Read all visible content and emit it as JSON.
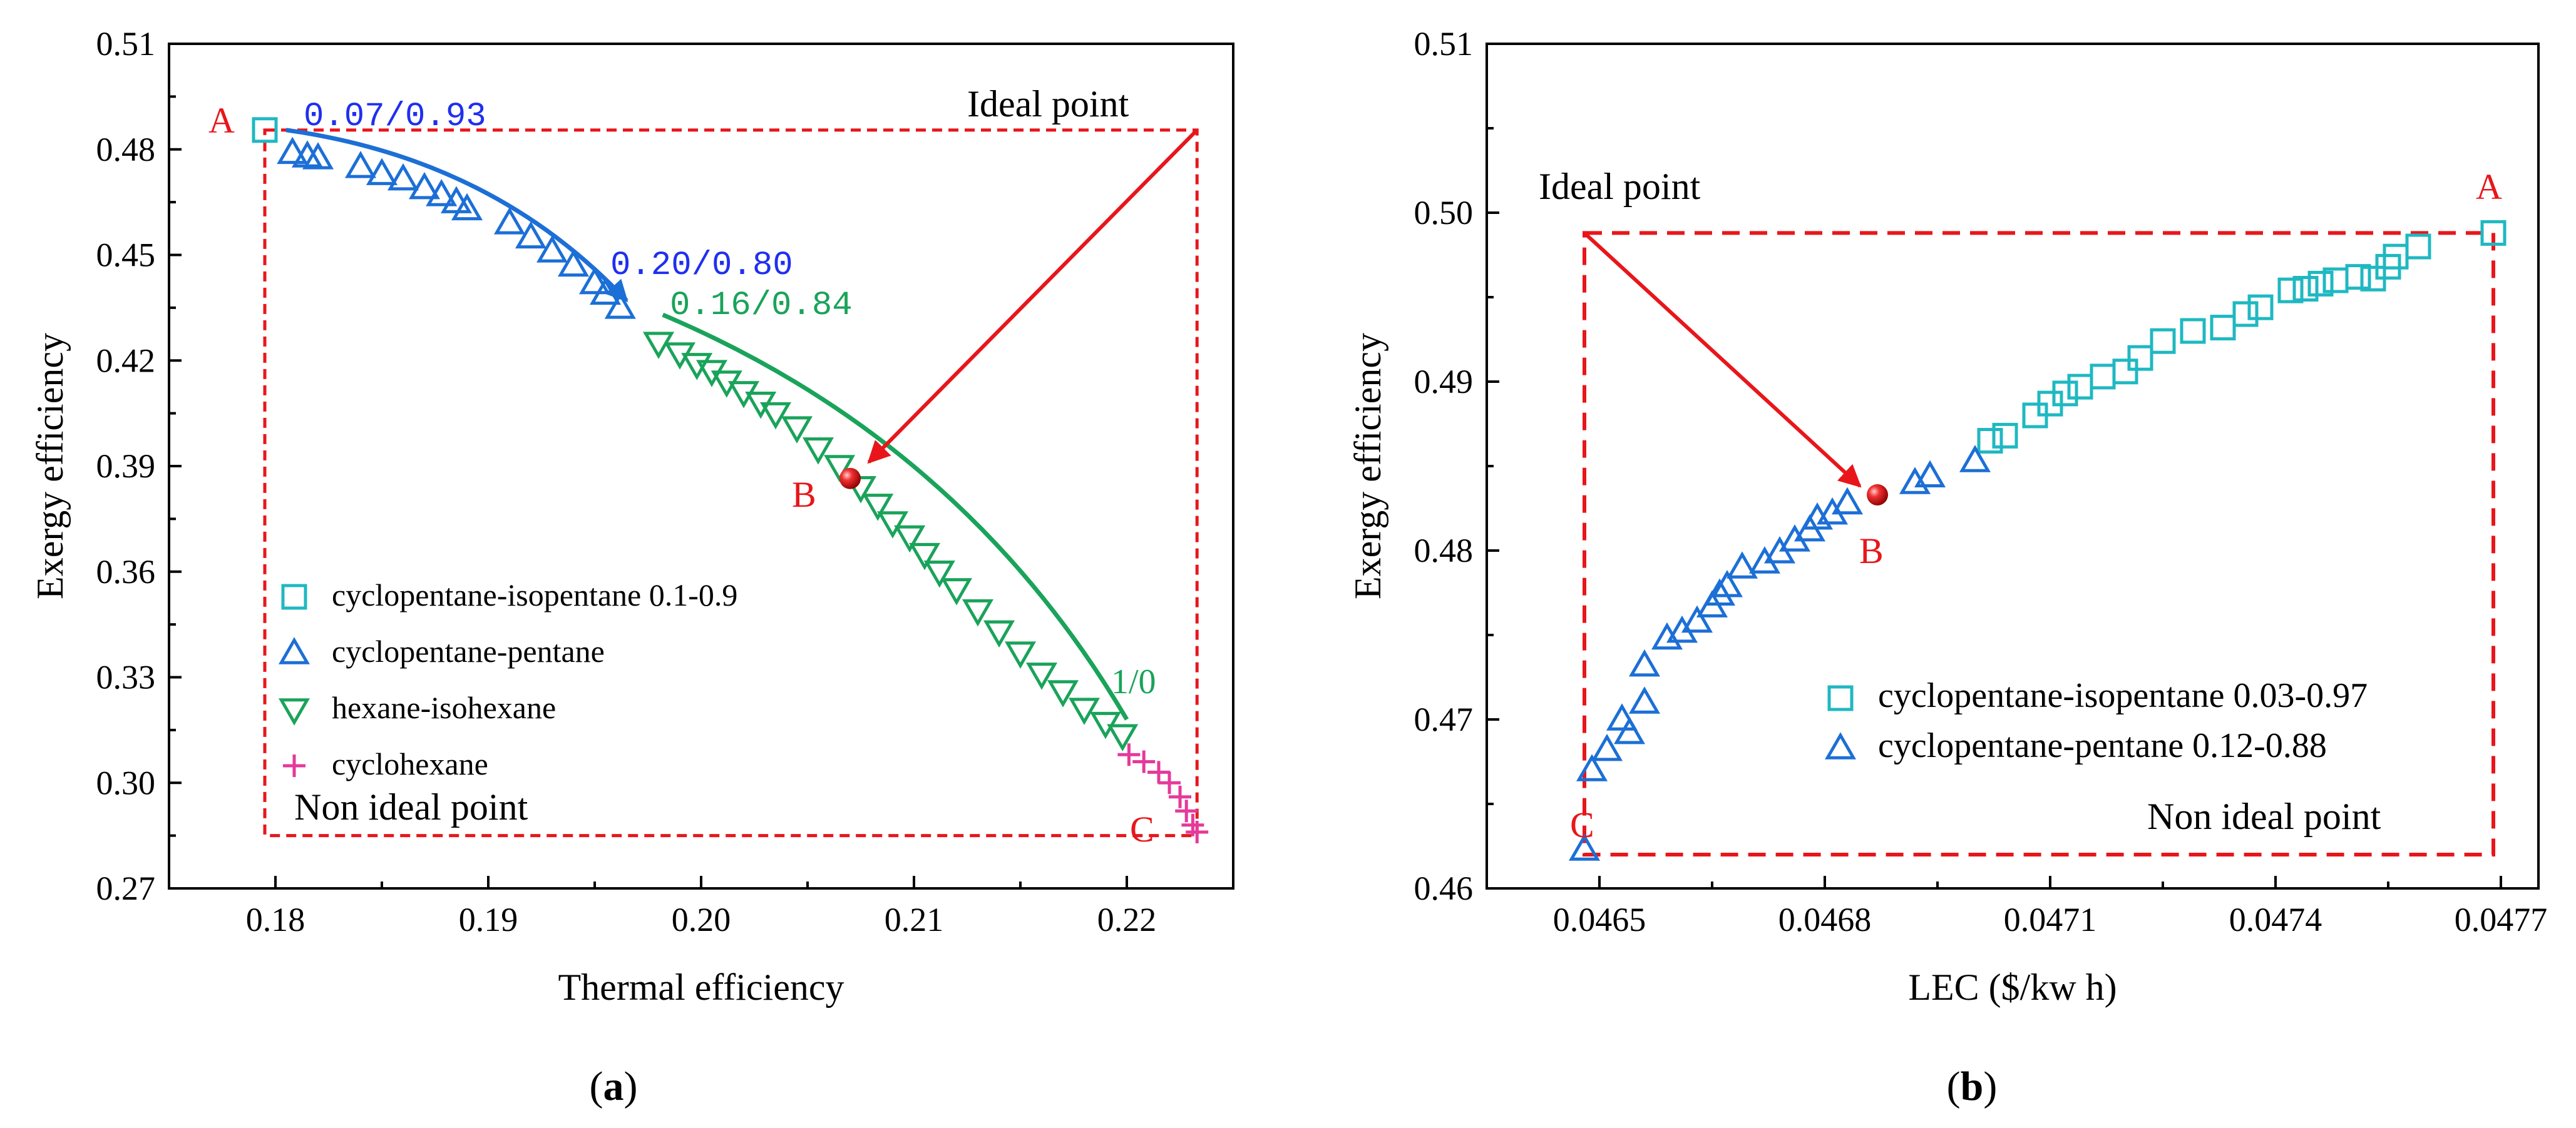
{
  "colors": {
    "cyan": "#1fb8c2",
    "blue": "#1c6fd6",
    "green": "#1aa35a",
    "magenta": "#e5399b",
    "red": "#e8161b",
    "annot_blue": "#1f2ff0",
    "annot_green": "#1aa35a"
  },
  "captions": {
    "a": "a",
    "b": "b"
  },
  "chart_data": [
    {
      "panel": "a",
      "type": "scatter",
      "xlabel": "Thermal efficiency",
      "ylabel": "Exergy efficiency",
      "xlim": [
        0.175,
        0.225
      ],
      "ylim": [
        0.27,
        0.51
      ],
      "xticks": [
        "0.18",
        "0.19",
        "0.20",
        "0.21",
        "0.22"
      ],
      "yticks": [
        "0.27",
        "0.30",
        "0.33",
        "0.36",
        "0.39",
        "0.42",
        "0.45",
        "0.48",
        "0.51"
      ],
      "legend": [
        {
          "label": "cyclopentane-isopentane 0.1-0.9",
          "marker": "square",
          "color": "cyan"
        },
        {
          "label": "cyclopentane-pentane",
          "marker": "triangle-up",
          "color": "blue"
        },
        {
          "label": "hexane-isohexane",
          "marker": "triangle-down",
          "color": "green"
        },
        {
          "label": "cyclohexane",
          "marker": "plus",
          "color": "magenta"
        }
      ],
      "series": [
        {
          "name": "cyclopentane-isopentane 0.1-0.9",
          "marker": "square",
          "color": "cyan",
          "points": [
            [
              0.1795,
              0.4855
            ]
          ]
        },
        {
          "name": "cyclopentane-pentane",
          "marker": "triangle-up",
          "color": "blue",
          "points": [
            [
              0.1808,
              0.479
            ],
            [
              0.1815,
              0.478
            ],
            [
              0.182,
              0.4775
            ],
            [
              0.184,
              0.475
            ],
            [
              0.185,
              0.473
            ],
            [
              0.186,
              0.4715
            ],
            [
              0.187,
              0.469
            ],
            [
              0.1878,
              0.467
            ],
            [
              0.1885,
              0.465
            ],
            [
              0.189,
              0.463
            ],
            [
              0.191,
              0.459
            ],
            [
              0.192,
              0.455
            ],
            [
              0.193,
              0.451
            ],
            [
              0.194,
              0.447
            ],
            [
              0.195,
              0.442
            ],
            [
              0.1955,
              0.439
            ],
            [
              0.1962,
              0.435
            ]
          ]
        },
        {
          "name": "hexane-isohexane",
          "marker": "triangle-down",
          "color": "green",
          "points": [
            [
              0.198,
              0.425
            ],
            [
              0.199,
              0.422
            ],
            [
              0.1998,
              0.419
            ],
            [
              0.2005,
              0.417
            ],
            [
              0.2012,
              0.414
            ],
            [
              0.202,
              0.411
            ],
            [
              0.2028,
              0.408
            ],
            [
              0.2035,
              0.405
            ],
            [
              0.2045,
              0.401
            ],
            [
              0.2055,
              0.395
            ],
            [
              0.2065,
              0.39
            ],
            [
              0.2075,
              0.384
            ],
            [
              0.2083,
              0.379
            ],
            [
              0.209,
              0.374
            ],
            [
              0.2098,
              0.37
            ],
            [
              0.2105,
              0.365
            ],
            [
              0.2112,
              0.36
            ],
            [
              0.212,
              0.355
            ],
            [
              0.213,
              0.349
            ],
            [
              0.214,
              0.343
            ],
            [
              0.215,
              0.337
            ],
            [
              0.216,
              0.331
            ],
            [
              0.217,
              0.326
            ],
            [
              0.218,
              0.321
            ],
            [
              0.219,
              0.317
            ],
            [
              0.2198,
              0.3135
            ]
          ]
        },
        {
          "name": "cyclohexane",
          "marker": "plus",
          "color": "magenta",
          "points": [
            [
              0.2201,
              0.308
            ],
            [
              0.2208,
              0.306
            ],
            [
              0.2215,
              0.303
            ],
            [
              0.222,
              0.3
            ],
            [
              0.2225,
              0.296
            ],
            [
              0.2228,
              0.292
            ],
            [
              0.2231,
              0.288
            ],
            [
              0.2233,
              0.286
            ]
          ]
        }
      ],
      "ideal_box": {
        "x_min": 0.1795,
        "x_max": 0.2233,
        "y_min": 0.285,
        "y_max": 0.4855
      },
      "trend_lines": [
        {
          "color": "blue",
          "from": [
            0.1805,
            0.4855
          ],
          "to": [
            0.1965,
            0.437
          ],
          "label_start": "0.07/0.93",
          "label_end": "0.20/0.80"
        },
        {
          "color": "green",
          "from": [
            0.1982,
            0.433
          ],
          "to": [
            0.22,
            0.318
          ],
          "label_start": "0.16/0.84",
          "label_end": "1/0"
        }
      ],
      "annotations": {
        "ideal_point": "Ideal point",
        "non_ideal_point": "Non ideal point",
        "A": "A",
        "B": "B",
        "C": "C"
      },
      "point_B": [
        0.207,
        0.3865
      ]
    },
    {
      "panel": "b",
      "type": "scatter",
      "xlabel": "LEC ($/kw h)",
      "ylabel": "Exergy efficiency",
      "xlim": [
        0.04635,
        0.04775
      ],
      "ylim": [
        0.46,
        0.51
      ],
      "xticks": [
        "0.0465",
        "0.0468",
        "0.0471",
        "0.0474",
        "0.0477"
      ],
      "yticks": [
        "0.46",
        "0.47",
        "0.48",
        "0.49",
        "0.50",
        "0.51"
      ],
      "legend": [
        {
          "label": "cyclopentane-isopentane 0.03-0.97",
          "marker": "square",
          "color": "cyan"
        },
        {
          "label": "cyclopentane-pentane 0.12-0.88",
          "marker": "triangle-up",
          "color": "blue"
        }
      ],
      "series": [
        {
          "name": "cyclopentane-isopentane 0.03-0.97",
          "marker": "square",
          "color": "cyan",
          "points": [
            [
              0.04702,
              0.4865
            ],
            [
              0.04704,
              0.4868
            ],
            [
              0.04708,
              0.488
            ],
            [
              0.0471,
              0.4887
            ],
            [
              0.04712,
              0.4893
            ],
            [
              0.04714,
              0.4897
            ],
            [
              0.04717,
              0.4903
            ],
            [
              0.0472,
              0.4906
            ],
            [
              0.04722,
              0.4914
            ],
            [
              0.04725,
              0.4924
            ],
            [
              0.04729,
              0.493
            ],
            [
              0.04733,
              0.4932
            ],
            [
              0.04736,
              0.494
            ],
            [
              0.04738,
              0.4944
            ],
            [
              0.04742,
              0.4954
            ],
            [
              0.04744,
              0.4955
            ],
            [
              0.04746,
              0.4958
            ],
            [
              0.04748,
              0.496
            ],
            [
              0.04751,
              0.4962
            ],
            [
              0.04753,
              0.4961
            ],
            [
              0.04755,
              0.4968
            ],
            [
              0.04756,
              0.4974
            ],
            [
              0.04759,
              0.498
            ],
            [
              0.04769,
              0.4988
            ]
          ]
        },
        {
          "name": "cyclopentane-pentane 0.12-0.88",
          "marker": "triangle-up",
          "color": "blue",
          "points": [
            [
              0.04648,
              0.4623
            ],
            [
              0.04649,
              0.467
            ],
            [
              0.04651,
              0.4682
            ],
            [
              0.04653,
              0.47
            ],
            [
              0.04654,
              0.4692
            ],
            [
              0.04656,
              0.471
            ],
            [
              0.04656,
              0.4732
            ],
            [
              0.04659,
              0.4748
            ],
            [
              0.04661,
              0.4752
            ],
            [
              0.04663,
              0.4758
            ],
            [
              0.04665,
              0.4767
            ],
            [
              0.04666,
              0.4774
            ],
            [
              0.04667,
              0.4779
            ],
            [
              0.04669,
              0.479
            ],
            [
              0.04672,
              0.4793
            ],
            [
              0.04674,
              0.4799
            ],
            [
              0.04676,
              0.4806
            ],
            [
              0.04678,
              0.4812
            ],
            [
              0.04679,
              0.4819
            ],
            [
              0.04681,
              0.4822
            ],
            [
              0.04683,
              0.4828
            ],
            [
              0.04692,
              0.484
            ],
            [
              0.04694,
              0.4844
            ],
            [
              0.047,
              0.4853
            ]
          ]
        }
      ],
      "ideal_box": {
        "x_min": 0.04648,
        "x_max": 0.04769,
        "y_min": 0.462,
        "y_max": 0.4988
      },
      "annotations": {
        "ideal_point": "Ideal point",
        "non_ideal_point": "Non ideal point",
        "A": "A",
        "B": "B",
        "C": "C"
      },
      "point_B": [
        0.04687,
        0.4833
      ]
    }
  ]
}
